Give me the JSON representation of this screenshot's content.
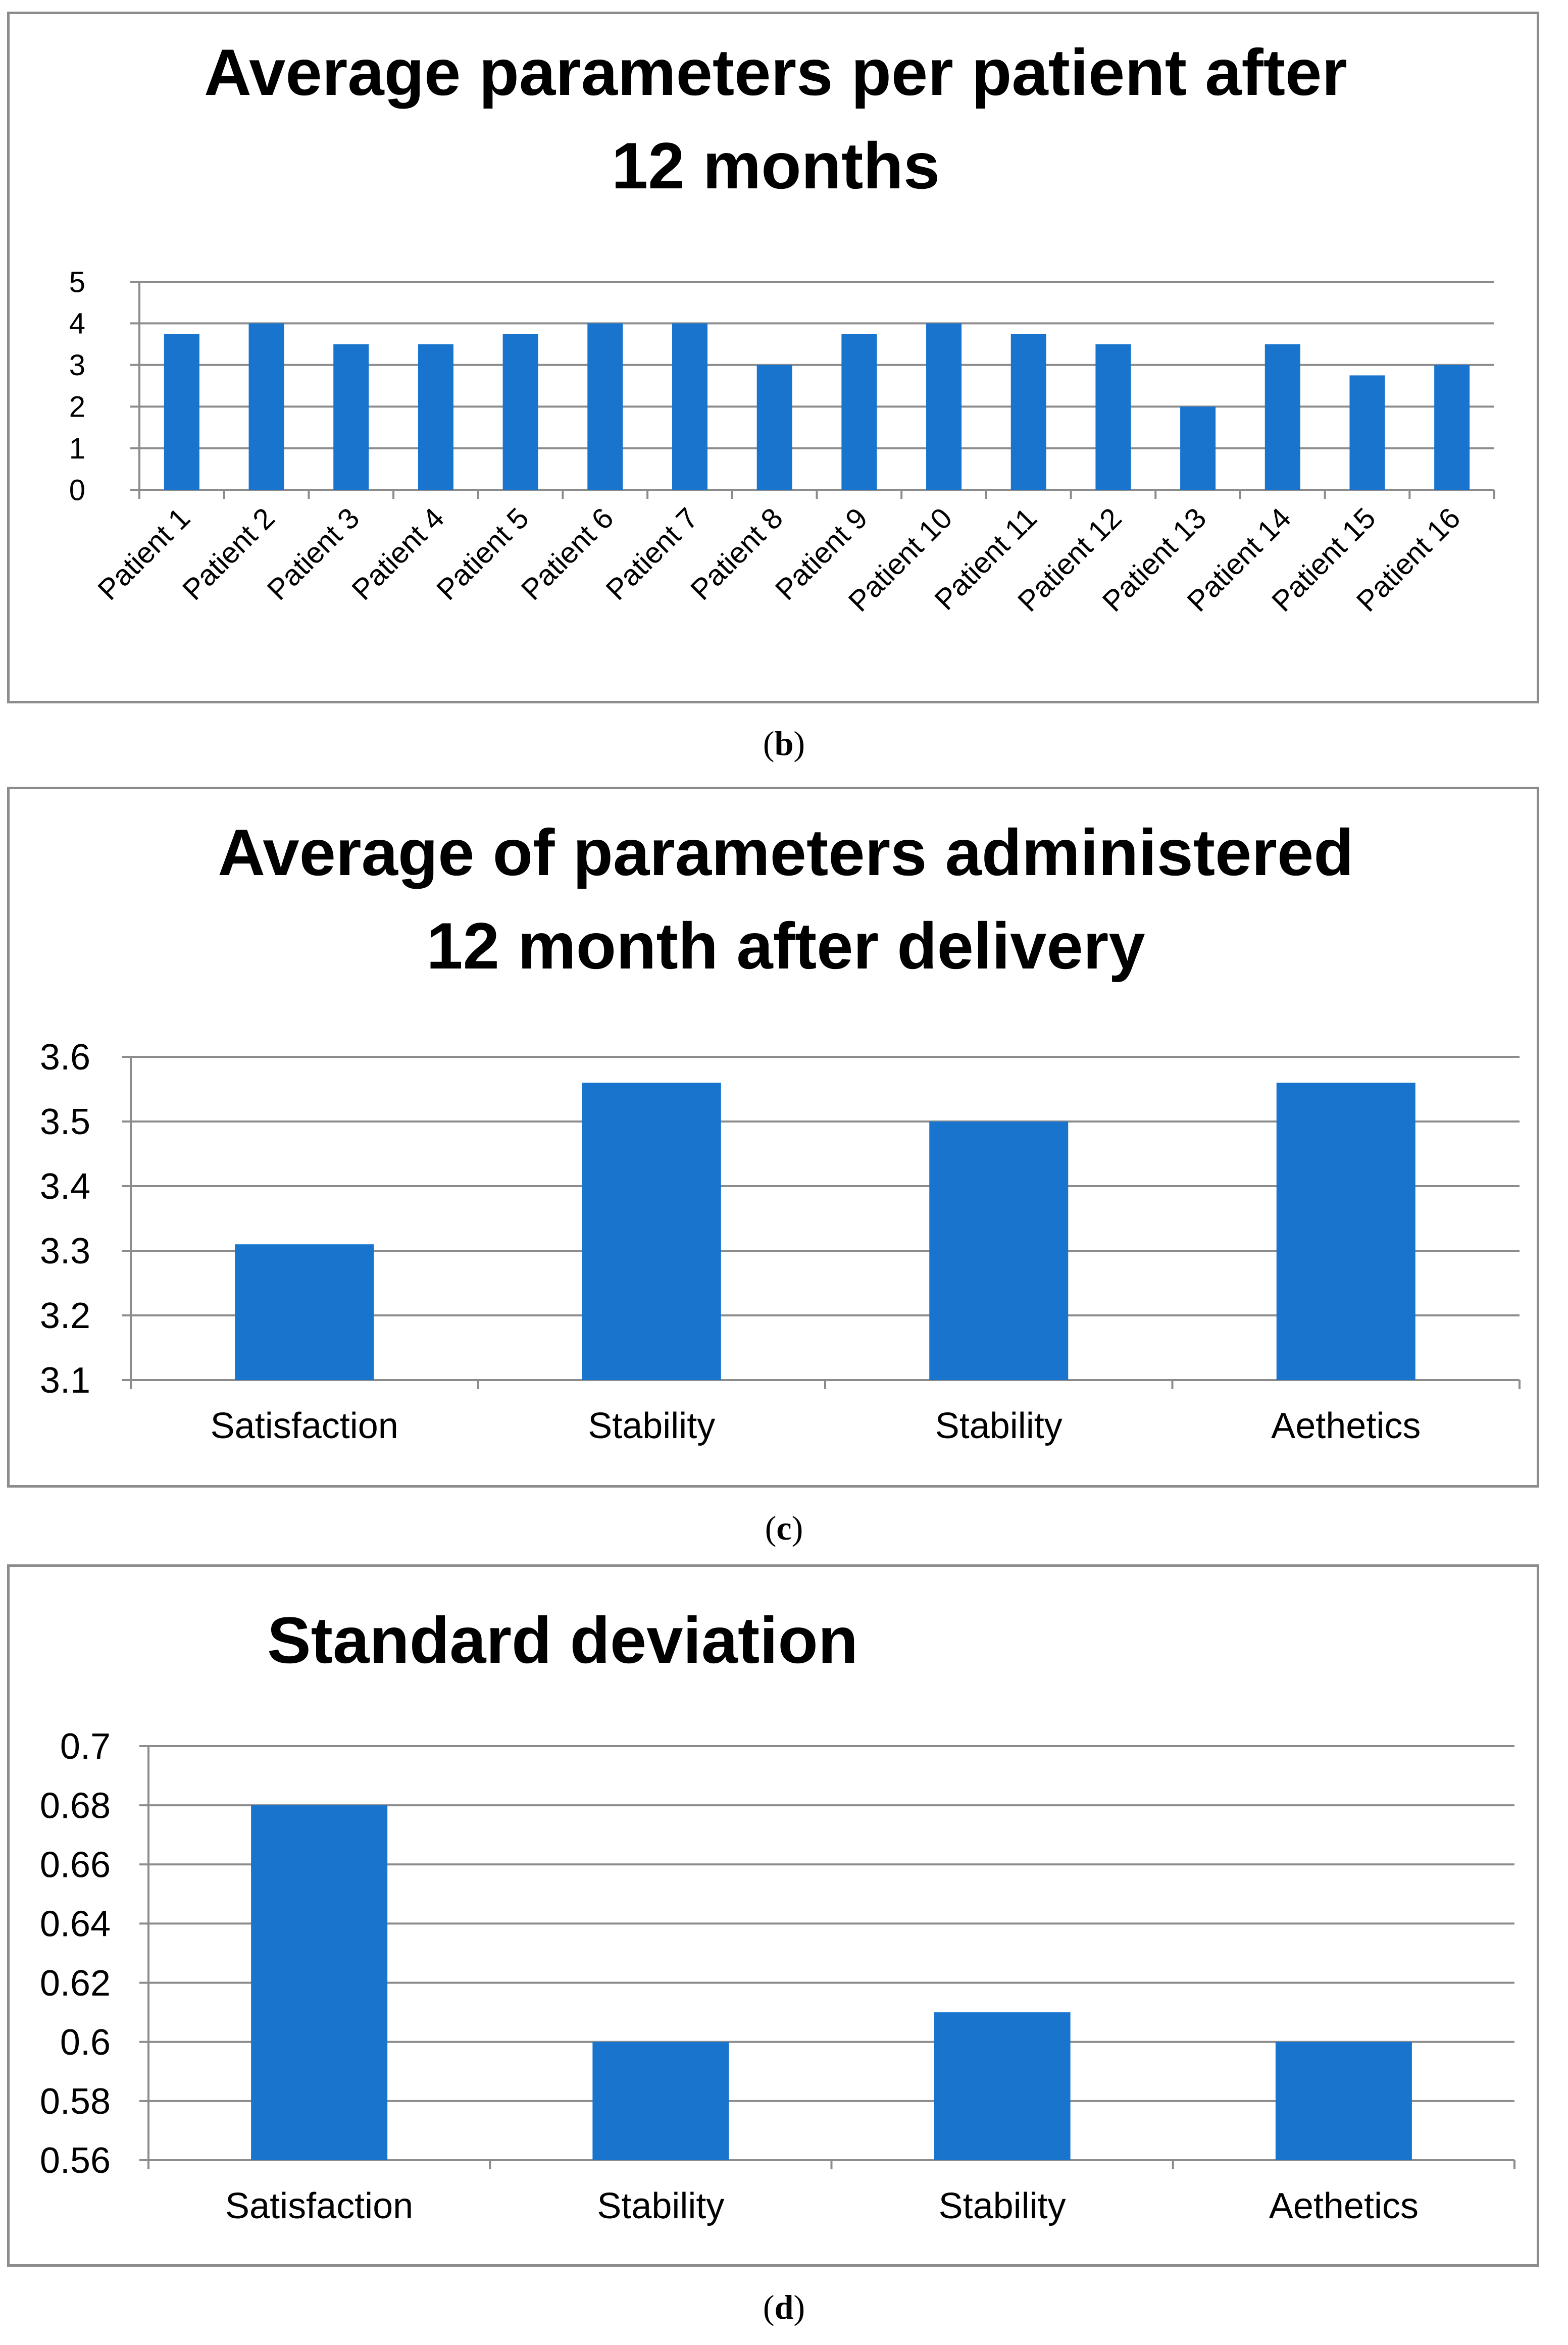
{
  "colors": {
    "bar": "#1874CD",
    "grid": "#8c8c8c",
    "axis": "#8c8c8c",
    "border": "#8c8c8c"
  },
  "captions": {
    "b": "b",
    "c": "c",
    "d": "d"
  },
  "chart_data": [
    {
      "type": "bar",
      "title_lines": [
        "Average parameters per patient after",
        "12 months"
      ],
      "categories": [
        "Patient  1",
        "Patient 2",
        "Patient 3",
        "Patient 4",
        "Patient 5",
        "Patient 6",
        "Patient 7",
        "Patient 8",
        "Patient 9",
        "Patient 10",
        "Patient 11",
        "Patient 12",
        "Patient 13",
        "Patient 14",
        "Patient 15",
        "Patient 16"
      ],
      "values": [
        3.75,
        4,
        3.5,
        3.5,
        3.75,
        4,
        4,
        3,
        3.75,
        4,
        3.75,
        3.5,
        2,
        3.5,
        2.75,
        3
      ],
      "yticks": [
        "0",
        "1",
        "2",
        "3",
        "4",
        "5"
      ],
      "ylim": [
        0,
        5
      ],
      "grid": true,
      "legend": "none"
    },
    {
      "type": "bar",
      "title_lines": [
        "Average of parameters administered",
        "12 month after delivery"
      ],
      "categories": [
        "Satisfaction",
        "Stability",
        "Stability",
        "Aethetics"
      ],
      "values": [
        3.31,
        3.56,
        3.5,
        3.56
      ],
      "yticks": [
        "3.1",
        "3.2",
        "3.3",
        "3.4",
        "3.5",
        "3.6"
      ],
      "ylim": [
        3.1,
        3.6
      ],
      "grid": true,
      "legend": "none"
    },
    {
      "type": "bar",
      "title_lines": [
        "Standard deviation"
      ],
      "categories": [
        "Satisfaction",
        "Stability",
        "Stability",
        "Aethetics"
      ],
      "values": [
        0.68,
        0.6,
        0.61,
        0.6
      ],
      "yticks": [
        "0.56",
        "0.58",
        "0.6",
        "0.62",
        "0.64",
        "0.66",
        "0.68",
        "0.7"
      ],
      "ylim": [
        0.56,
        0.7
      ],
      "grid": true,
      "legend": "none"
    }
  ]
}
